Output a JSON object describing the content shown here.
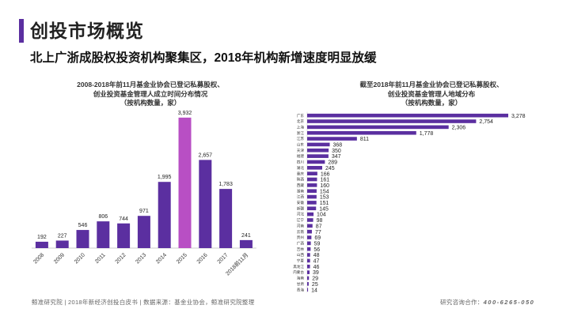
{
  "header": {
    "title": "创投市场概览",
    "subtitle": "北上广浙成股权投资机构聚集区，2018年机构新增速度明显放缓"
  },
  "footer": {
    "source": "鲸准研究院 | 2018年新经济创投白皮书 | 数据来源：基金业协会，鲸准研究院整理",
    "contact_label": "研究咨询合作：",
    "contact_phone": "400-6265-050"
  },
  "colors": {
    "accent": "#5b2fa0",
    "bar": "#5b2fa0",
    "highlight": "#b84fc4"
  },
  "chart_data": [
    {
      "type": "bar",
      "title_lines": [
        "2008-2018年前11月基金业协会已登记私募股权、",
        "创业投资基金管理人成立时间分布情况",
        "（按机构数量，家）"
      ],
      "categories": [
        "2008",
        "2009",
        "2010",
        "2011",
        "2012",
        "2013",
        "2014",
        "2015",
        "2016",
        "2017",
        "2018前11月"
      ],
      "values": [
        192,
        227,
        546,
        806,
        744,
        971,
        1995,
        3932,
        2657,
        1783,
        241
      ],
      "highlight_index": 7,
      "ylim": [
        0,
        4000
      ]
    },
    {
      "type": "bar",
      "orientation": "horizontal",
      "title_lines": [
        "截至2018年前11月基金业协会已登记私募股权、",
        "创业投资基金管理人地域分布",
        "（按机构数量，家）"
      ],
      "categories": [
        "广东",
        "北京",
        "上海",
        "浙江",
        "江苏",
        "山东",
        "天津",
        "福建",
        "四川",
        "湖北",
        "重庆",
        "陕西",
        "西藏",
        "湖南",
        "江西",
        "安徽",
        "新疆",
        "河北",
        "辽宁",
        "河南",
        "云南",
        "贵州",
        "广西",
        "吉林",
        "山西",
        "宁夏",
        "黑龙江",
        "内蒙古",
        "海南",
        "甘肃",
        "青海"
      ],
      "values": [
        3278,
        2754,
        2306,
        1778,
        811,
        368,
        350,
        347,
        289,
        245,
        166,
        161,
        160,
        154,
        153,
        151,
        145,
        104,
        98,
        87,
        77,
        69,
        59,
        56,
        48,
        47,
        46,
        39,
        29,
        25,
        14
      ],
      "xlim": [
        0,
        3278
      ]
    }
  ]
}
